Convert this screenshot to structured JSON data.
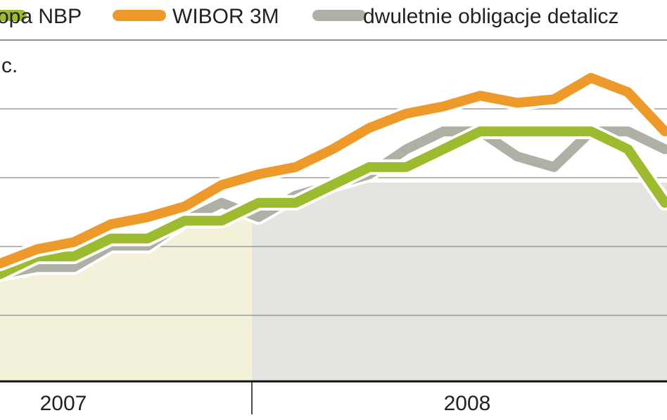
{
  "chart_data": {
    "type": "line",
    "unit_label": "c.",
    "legend_position": "top",
    "legend": [
      {
        "name": "opa NBP",
        "color": "#9dbb2e"
      },
      {
        "name": "WIBOR 3M",
        "color": "#ee9a2b"
      },
      {
        "name": "dwuletnie obligacje detalicz",
        "color": "#aeb0a6"
      }
    ],
    "period_labels": [
      "2007",
      "2008"
    ],
    "shaded_periods": [
      {
        "label": "2007",
        "fill": "#f3f1d9"
      },
      {
        "label": "2008",
        "fill": "#e4e4e0"
      }
    ],
    "x": [
      0,
      1,
      2,
      3,
      4,
      5,
      6,
      7,
      8,
      9,
      10,
      11,
      12,
      13,
      14,
      15,
      16,
      17,
      18
    ],
    "series": [
      {
        "name": "opa NBP",
        "color": "#9dbb2e",
        "values": [
          4.0,
          4.25,
          4.25,
          4.5,
          4.5,
          4.75,
          4.75,
          5.0,
          5.0,
          5.25,
          5.5,
          5.5,
          5.75,
          6.0,
          6.0,
          6.0,
          6.0,
          5.75,
          5.0
        ]
      },
      {
        "name": "WIBOR 3M",
        "color": "#ee9a2b",
        "values": [
          4.15,
          4.35,
          4.45,
          4.7,
          4.8,
          4.95,
          5.25,
          5.4,
          5.5,
          5.75,
          6.05,
          6.25,
          6.35,
          6.5,
          6.4,
          6.45,
          6.75,
          6.55,
          6.0
        ]
      },
      {
        "name": "dwuletnie obligacje detalicz",
        "color": "#aeb0a6",
        "values": [
          4.0,
          4.1,
          4.1,
          4.4,
          4.4,
          4.75,
          5.0,
          4.8,
          5.1,
          5.25,
          5.4,
          5.75,
          6.0,
          6.0,
          5.65,
          5.5,
          6.0,
          6.0,
          5.75
        ]
      }
    ],
    "grid": true
  }
}
